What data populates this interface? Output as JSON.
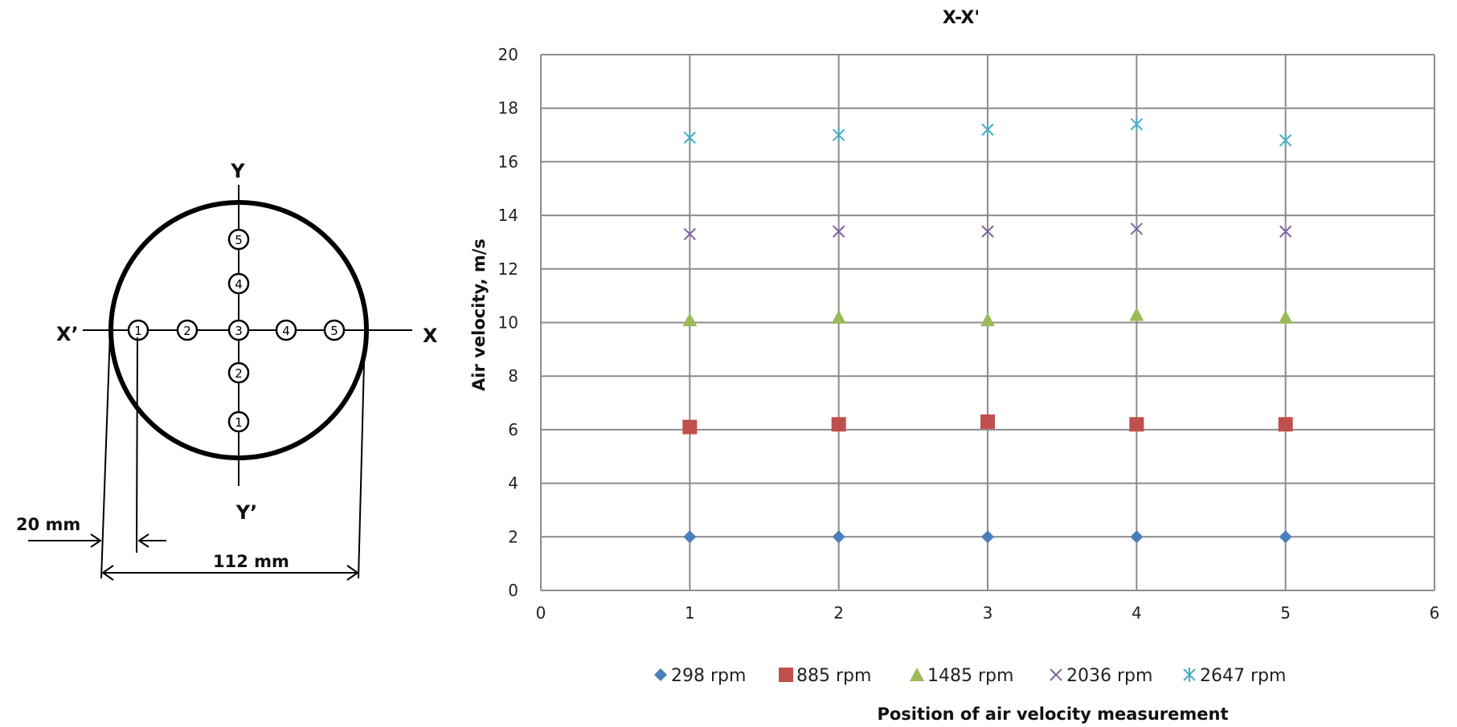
{
  "diagram": {
    "axis_labels": {
      "x": "X",
      "x_prime": "X’",
      "y": "Y",
      "y_prime": "Y’"
    },
    "horizontal_points": [
      "1",
      "2",
      "3",
      "4",
      "5"
    ],
    "vertical_points": [
      "1",
      "2",
      "4",
      "5"
    ],
    "dim_inner": "20 mm",
    "dim_diameter": "112 mm"
  },
  "chart_data": {
    "type": "scatter",
    "title": "X-X'",
    "xlabel": "Position of air velocity measurement",
    "ylabel": "Air velocity, m/s",
    "xlim": [
      0,
      6
    ],
    "ylim": [
      0,
      20
    ],
    "x_ticks": [
      0,
      1,
      2,
      3,
      4,
      5,
      6
    ],
    "y_ticks": [
      0,
      2,
      4,
      6,
      8,
      10,
      12,
      14,
      16,
      18,
      20
    ],
    "grid": true,
    "legend_position": "bottom",
    "x": [
      1,
      2,
      3,
      4,
      5
    ],
    "series": [
      {
        "name": "298 rpm",
        "marker": "diamond",
        "color": "#4a7ebb",
        "values": [
          2.0,
          2.0,
          2.0,
          2.0,
          2.0
        ]
      },
      {
        "name": "885 rpm",
        "marker": "square",
        "color": "#c0504d",
        "values": [
          6.1,
          6.2,
          6.3,
          6.2,
          6.2
        ]
      },
      {
        "name": "1485 rpm",
        "marker": "triangle",
        "color": "#9bbb59",
        "values": [
          10.1,
          10.2,
          10.1,
          10.3,
          10.2
        ]
      },
      {
        "name": "2036 rpm",
        "marker": "x",
        "color": "#8064a2",
        "values": [
          13.3,
          13.4,
          13.4,
          13.5,
          13.4
        ]
      },
      {
        "name": "2647 rpm",
        "marker": "star",
        "color": "#4bacc6",
        "values": [
          16.9,
          17.0,
          17.2,
          17.4,
          16.8
        ]
      }
    ]
  }
}
